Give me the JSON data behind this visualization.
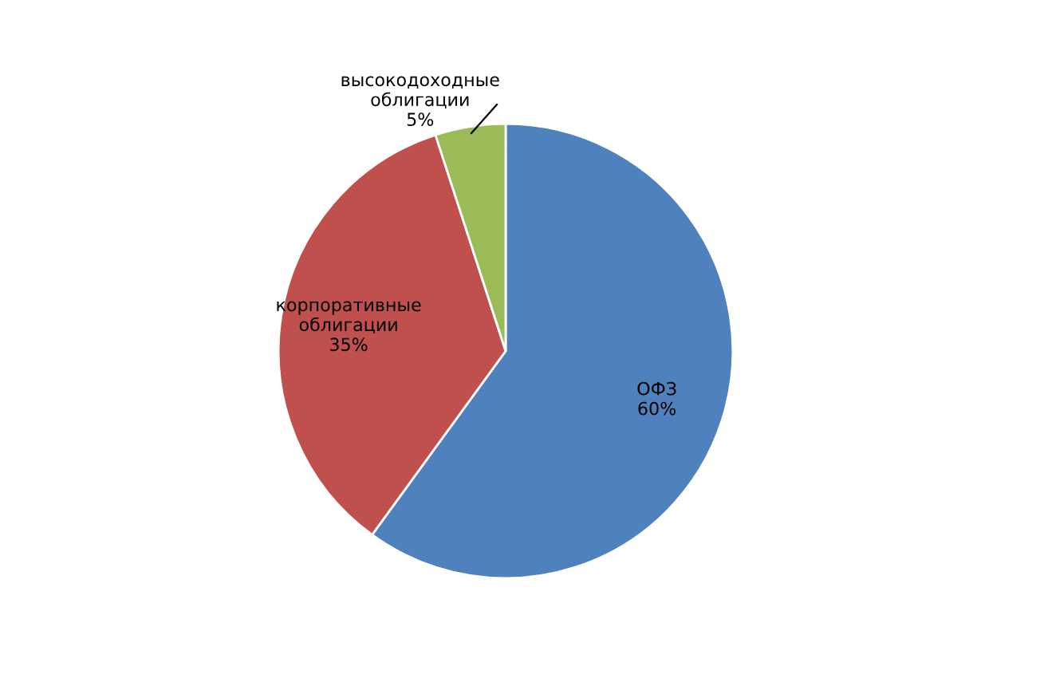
{
  "chart_data": {
    "type": "pie",
    "categories": [
      "ОФЗ",
      "корпоративные облигации",
      "высокодоходные облигации"
    ],
    "values": [
      60,
      35,
      5
    ],
    "colors": [
      "#4f81bd",
      "#c0504d",
      "#9bbb59"
    ],
    "value_labels": [
      "60%",
      "35%",
      "5%"
    ],
    "legend": false
  }
}
